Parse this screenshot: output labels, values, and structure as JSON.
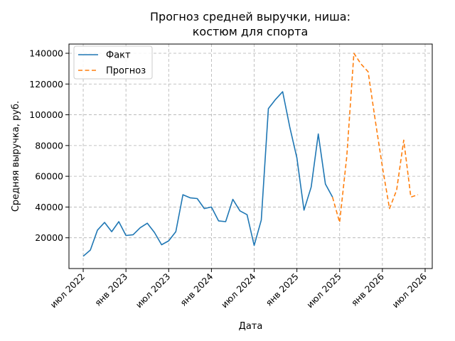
{
  "chart_data": {
    "type": "line",
    "title_lines": [
      "Прогноз средней выручки, ниша:",
      "костюм для спорта"
    ],
    "xlabel": "Дата",
    "ylabel": "Средняя выручка, руб.",
    "x_tick_labels": [
      "июл 2022",
      "янв 2023",
      "июл 2023",
      "янв 2024",
      "июл 2024",
      "янв 2025",
      "июл 2025",
      "янв 2026",
      "июл 2026"
    ],
    "y_tick_labels": [
      "20000",
      "40000",
      "60000",
      "80000",
      "100000",
      "120000",
      "140000"
    ],
    "y_ticks": [
      20000,
      40000,
      60000,
      80000,
      100000,
      120000,
      140000
    ],
    "ylim": [
      0,
      146000
    ],
    "x_axis_range": [
      "2022-05",
      "2026-08"
    ],
    "grid": true,
    "legend_position": "top-left",
    "series": [
      {
        "name": "Факт",
        "color": "#1f77b4",
        "style": "solid",
        "x": [
          "2022-07",
          "2022-08",
          "2022-09",
          "2022-10",
          "2022-11",
          "2022-12",
          "2023-01",
          "2023-02",
          "2023-03",
          "2023-04",
          "2023-05",
          "2023-06",
          "2023-07",
          "2023-08",
          "2023-09",
          "2023-10",
          "2023-11",
          "2023-12",
          "2024-01",
          "2024-02",
          "2024-03",
          "2024-04",
          "2024-05",
          "2024-06",
          "2024-07",
          "2024-08",
          "2024-09",
          "2024-10",
          "2024-11",
          "2024-12",
          "2025-01",
          "2025-02",
          "2025-03",
          "2025-04",
          "2025-05",
          "2025-06"
        ],
        "values": [
          8000,
          12000,
          25000,
          30000,
          24000,
          30500,
          21500,
          22000,
          26500,
          29500,
          23500,
          15500,
          18000,
          24000,
          48000,
          46000,
          45500,
          39000,
          40000,
          31000,
          30500,
          45000,
          37500,
          35000,
          15000,
          31500,
          104000,
          110000,
          115000,
          92000,
          72000,
          38000,
          53000,
          87500,
          55000,
          46500
        ]
      },
      {
        "name": "Прогноз",
        "color": "#ff7f0e",
        "style": "dashed",
        "x": [
          "2025-06",
          "2025-07",
          "2025-08",
          "2025-09",
          "2025-10",
          "2025-11",
          "2025-12",
          "2026-01",
          "2026-02",
          "2026-03",
          "2026-04",
          "2026-05",
          "2026-06"
        ],
        "values": [
          46500,
          30000,
          73000,
          140000,
          133000,
          128000,
          96500,
          66000,
          39000,
          51000,
          83500,
          46500,
          48000
        ]
      }
    ]
  }
}
